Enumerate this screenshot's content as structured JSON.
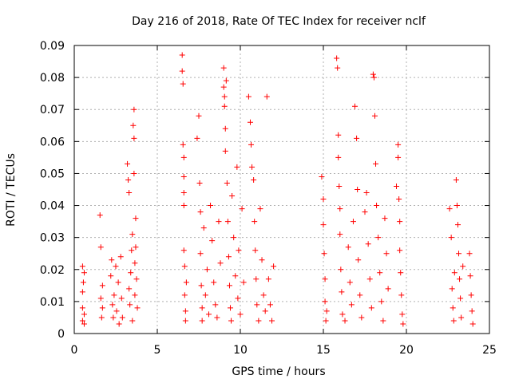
{
  "chart_data": {
    "type": "scatter",
    "title": "Day 216 of 2018, Rate Of TEC Index for receiver nclf",
    "xlabel": "GPS time / hours",
    "ylabel": "ROTI / TECUs",
    "xlim": [
      0,
      25
    ],
    "ylim": [
      0,
      0.09
    ],
    "x_ticks": [
      0,
      5,
      10,
      15,
      20,
      25
    ],
    "x_tick_labels": [
      "0",
      "5",
      "10",
      "15",
      "20",
      "25"
    ],
    "y_ticks": [
      0,
      0.01,
      0.02,
      0.03,
      0.04,
      0.05,
      0.06,
      0.07,
      0.08,
      0.09
    ],
    "y_tick_labels": [
      "0",
      "0.01",
      "0.02",
      "0.03",
      "0.04",
      "0.05",
      "0.06",
      "0.07",
      "0.08",
      "0.09"
    ],
    "grid": true,
    "marker": "+",
    "marker_color": "#ff0000",
    "series": [
      {
        "name": "ROTI",
        "points": [
          [
            0.5,
            0.004
          ],
          [
            0.5,
            0.008
          ],
          [
            0.5,
            0.013
          ],
          [
            0.5,
            0.021
          ],
          [
            0.55,
            0.016
          ],
          [
            0.6,
            0.003
          ],
          [
            0.6,
            0.006
          ],
          [
            0.6,
            0.019
          ],
          [
            1.55,
            0.037
          ],
          [
            1.6,
            0.027
          ],
          [
            1.6,
            0.011
          ],
          [
            1.65,
            0.005
          ],
          [
            1.7,
            0.008
          ],
          [
            1.7,
            0.015
          ],
          [
            2.2,
            0.018
          ],
          [
            2.25,
            0.023
          ],
          [
            2.3,
            0.009
          ],
          [
            2.35,
            0.005
          ],
          [
            2.4,
            0.012
          ],
          [
            2.5,
            0.021
          ],
          [
            2.55,
            0.007
          ],
          [
            2.65,
            0.016
          ],
          [
            2.7,
            0.003
          ],
          [
            2.8,
            0.024
          ],
          [
            2.85,
            0.011
          ],
          [
            2.9,
            0.005
          ],
          [
            3.2,
            0.053
          ],
          [
            3.25,
            0.048
          ],
          [
            3.3,
            0.044
          ],
          [
            3.3,
            0.014
          ],
          [
            3.35,
            0.009
          ],
          [
            3.4,
            0.019
          ],
          [
            3.45,
            0.026
          ],
          [
            3.5,
            0.031
          ],
          [
            3.5,
            0.004
          ],
          [
            3.55,
            0.065
          ],
          [
            3.6,
            0.07
          ],
          [
            3.6,
            0.061
          ],
          [
            3.6,
            0.05
          ],
          [
            3.65,
            0.022
          ],
          [
            3.65,
            0.012
          ],
          [
            3.7,
            0.036
          ],
          [
            3.7,
            0.027
          ],
          [
            3.75,
            0.017
          ],
          [
            3.8,
            0.008
          ],
          [
            6.5,
            0.087
          ],
          [
            6.5,
            0.082
          ],
          [
            6.55,
            0.078
          ],
          [
            6.55,
            0.059
          ],
          [
            6.6,
            0.055
          ],
          [
            6.6,
            0.049
          ],
          [
            6.6,
            0.044
          ],
          [
            6.6,
            0.04
          ],
          [
            6.6,
            0.026
          ],
          [
            6.65,
            0.021
          ],
          [
            6.65,
            0.012
          ],
          [
            6.7,
            0.007
          ],
          [
            6.7,
            0.004
          ],
          [
            6.75,
            0.016
          ],
          [
            7.4,
            0.061
          ],
          [
            7.5,
            0.068
          ],
          [
            7.55,
            0.047
          ],
          [
            7.6,
            0.038
          ],
          [
            7.6,
            0.025
          ],
          [
            7.65,
            0.015
          ],
          [
            7.7,
            0.008
          ],
          [
            7.7,
            0.004
          ],
          [
            7.8,
            0.033
          ],
          [
            7.9,
            0.012
          ],
          [
            8.0,
            0.02
          ],
          [
            8.1,
            0.006
          ],
          [
            8.2,
            0.04
          ],
          [
            8.3,
            0.029
          ],
          [
            8.4,
            0.016
          ],
          [
            8.5,
            0.009
          ],
          [
            8.6,
            0.005
          ],
          [
            8.7,
            0.035
          ],
          [
            8.8,
            0.022
          ],
          [
            9.0,
            0.083
          ],
          [
            9.0,
            0.077
          ],
          [
            9.05,
            0.074
          ],
          [
            9.05,
            0.071
          ],
          [
            9.1,
            0.064
          ],
          [
            9.1,
            0.057
          ],
          [
            9.15,
            0.079
          ],
          [
            9.2,
            0.047
          ],
          [
            9.25,
            0.035
          ],
          [
            9.3,
            0.024
          ],
          [
            9.35,
            0.015
          ],
          [
            9.4,
            0.008
          ],
          [
            9.45,
            0.004
          ],
          [
            9.5,
            0.043
          ],
          [
            9.6,
            0.03
          ],
          [
            9.7,
            0.018
          ],
          [
            9.8,
            0.052
          ],
          [
            9.85,
            0.011
          ],
          [
            9.9,
            0.026
          ],
          [
            10.0,
            0.006
          ],
          [
            10.1,
            0.039
          ],
          [
            10.2,
            0.016
          ],
          [
            10.5,
            0.074
          ],
          [
            10.6,
            0.066
          ],
          [
            10.65,
            0.059
          ],
          [
            10.7,
            0.052
          ],
          [
            10.8,
            0.048
          ],
          [
            10.85,
            0.035
          ],
          [
            10.9,
            0.026
          ],
          [
            10.95,
            0.017
          ],
          [
            11.0,
            0.009
          ],
          [
            11.1,
            0.004
          ],
          [
            11.2,
            0.039
          ],
          [
            11.3,
            0.023
          ],
          [
            11.4,
            0.012
          ],
          [
            11.5,
            0.007
          ],
          [
            11.6,
            0.074
          ],
          [
            11.7,
            0.017
          ],
          [
            11.8,
            0.009
          ],
          [
            11.9,
            0.004
          ],
          [
            12.0,
            0.021
          ],
          [
            14.9,
            0.049
          ],
          [
            15.0,
            0.042
          ],
          [
            15.0,
            0.034
          ],
          [
            15.05,
            0.025
          ],
          [
            15.1,
            0.017
          ],
          [
            15.1,
            0.01
          ],
          [
            15.15,
            0.004
          ],
          [
            15.2,
            0.007
          ],
          [
            15.8,
            0.086
          ],
          [
            15.85,
            0.083
          ],
          [
            15.9,
            0.062
          ],
          [
            15.9,
            0.055
          ],
          [
            15.95,
            0.046
          ],
          [
            16.0,
            0.039
          ],
          [
            16.0,
            0.031
          ],
          [
            16.05,
            0.02
          ],
          [
            16.1,
            0.013
          ],
          [
            16.15,
            0.006
          ],
          [
            16.3,
            0.004
          ],
          [
            16.5,
            0.027
          ],
          [
            16.6,
            0.016
          ],
          [
            16.7,
            0.009
          ],
          [
            16.8,
            0.035
          ],
          [
            16.9,
            0.071
          ],
          [
            17.0,
            0.061
          ],
          [
            17.05,
            0.045
          ],
          [
            17.1,
            0.023
          ],
          [
            17.2,
            0.012
          ],
          [
            17.3,
            0.005
          ],
          [
            17.5,
            0.038
          ],
          [
            17.6,
            0.044
          ],
          [
            17.7,
            0.028
          ],
          [
            17.8,
            0.017
          ],
          [
            17.9,
            0.008
          ],
          [
            18.0,
            0.081
          ],
          [
            18.05,
            0.08
          ],
          [
            18.1,
            0.068
          ],
          [
            18.15,
            0.053
          ],
          [
            18.2,
            0.04
          ],
          [
            18.3,
            0.03
          ],
          [
            18.4,
            0.019
          ],
          [
            18.5,
            0.01
          ],
          [
            18.6,
            0.004
          ],
          [
            18.7,
            0.036
          ],
          [
            18.8,
            0.025
          ],
          [
            18.9,
            0.014
          ],
          [
            19.4,
            0.046
          ],
          [
            19.5,
            0.059
          ],
          [
            19.5,
            0.055
          ],
          [
            19.55,
            0.042
          ],
          [
            19.6,
            0.035
          ],
          [
            19.6,
            0.026
          ],
          [
            19.65,
            0.019
          ],
          [
            19.7,
            0.012
          ],
          [
            19.75,
            0.006
          ],
          [
            19.8,
            0.003
          ],
          [
            22.6,
            0.039
          ],
          [
            22.7,
            0.03
          ],
          [
            22.75,
            0.014
          ],
          [
            22.8,
            0.008
          ],
          [
            22.85,
            0.004
          ],
          [
            22.9,
            0.019
          ],
          [
            23.0,
            0.048
          ],
          [
            23.05,
            0.04
          ],
          [
            23.1,
            0.034
          ],
          [
            23.15,
            0.025
          ],
          [
            23.2,
            0.017
          ],
          [
            23.25,
            0.011
          ],
          [
            23.3,
            0.005
          ],
          [
            23.4,
            0.021
          ],
          [
            23.8,
            0.025
          ],
          [
            23.85,
            0.018
          ],
          [
            23.9,
            0.012
          ],
          [
            23.95,
            0.007
          ],
          [
            24.0,
            0.003
          ]
        ]
      }
    ]
  }
}
